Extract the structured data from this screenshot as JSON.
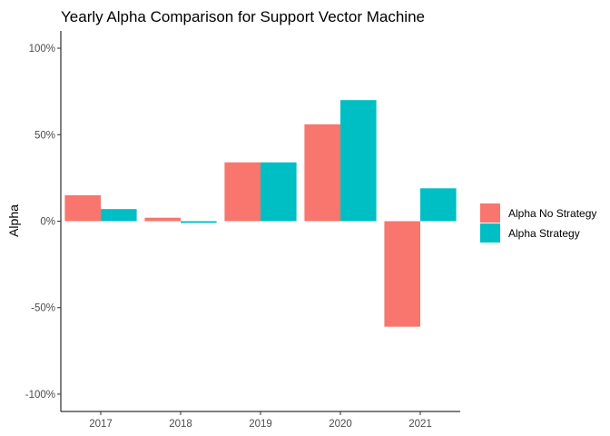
{
  "chart_data": {
    "type": "bar",
    "title": "Yearly Alpha Comparison for Support Vector Machine",
    "xlabel": "",
    "ylabel": "Alpha",
    "categories": [
      "2017",
      "2018",
      "2019",
      "2020",
      "2021"
    ],
    "series": [
      {
        "name": "Alpha No Strategy",
        "color": "#F8766D",
        "values": [
          15,
          2,
          34,
          56,
          -61
        ]
      },
      {
        "name": "Alpha Strategy",
        "color": "#00BFC4",
        "values": [
          7,
          -1,
          34,
          70,
          19
        ]
      }
    ],
    "ylim": [
      -110,
      110
    ],
    "yticks": [
      -100,
      -50,
      0,
      50,
      100
    ],
    "ytick_labels": [
      "-100%",
      "-50%",
      "0%",
      "50%",
      "100%"
    ],
    "grid": false,
    "legend_position": "right"
  }
}
